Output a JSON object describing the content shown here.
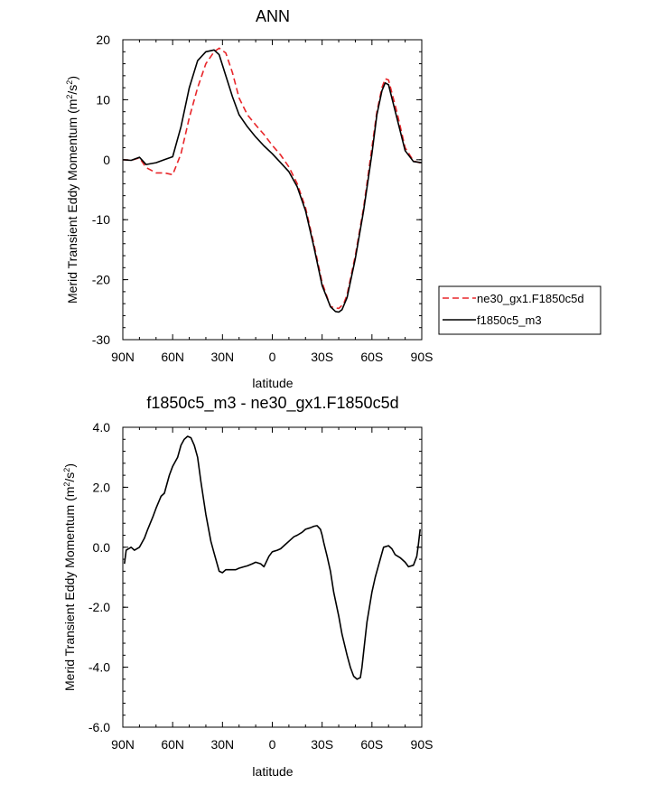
{
  "chart_data": [
    {
      "type": "line",
      "title": "ANN",
      "xlabel": "latitude",
      "ylabel": "Merid Transient Eddy Momentum (m",
      "ylabel_sup1": "2",
      "ylabel_mid": "/s",
      "ylabel_sup2": "2",
      "ylabel_end": ")",
      "xlim": [
        90,
        -90
      ],
      "ylim": [
        -30,
        20
      ],
      "x_ticks": [
        90,
        60,
        30,
        0,
        -30,
        -60,
        -90
      ],
      "x_tick_labels": [
        "90N",
        "60N",
        "30N",
        "0",
        "30S",
        "60S",
        "90S"
      ],
      "y_ticks": [
        -30,
        -20,
        -10,
        0,
        10,
        20
      ],
      "y_tick_labels": [
        "-30",
        "-20",
        "-10",
        "0",
        "10",
        "20"
      ],
      "legend": "right",
      "series": [
        {
          "name": "ne30_gx1.F1850c5d",
          "color": "#e8262a",
          "dash": "dashed",
          "x": [
            90,
            85,
            80,
            76,
            70,
            65,
            60,
            55,
            50,
            45,
            40,
            35,
            32,
            28,
            24,
            20,
            15,
            10,
            5,
            0,
            -5,
            -10,
            -15,
            -20,
            -25,
            -30,
            -35,
            -40,
            -43,
            -45,
            -50,
            -55,
            -60,
            -63,
            -66,
            -68,
            -70,
            -75,
            -80,
            -85,
            -90
          ],
          "y": [
            0,
            -0.1,
            0.3,
            -1.3,
            -2.2,
            -2.2,
            -2.5,
            1.0,
            7.0,
            12.0,
            16.0,
            18.0,
            18.6,
            17.8,
            14.5,
            10.3,
            7.5,
            5.8,
            4.2,
            2.4,
            0.8,
            -1.2,
            -4.0,
            -8.0,
            -14.0,
            -20.5,
            -24.5,
            -24.8,
            -24.0,
            -22.5,
            -16.0,
            -8.0,
            2.0,
            8.0,
            12.0,
            13.5,
            13.3,
            8.0,
            2.0,
            -0.2,
            -0.6
          ]
        },
        {
          "name": "f1850c5_m3",
          "color": "#000000",
          "dash": "solid",
          "x": [
            90,
            85,
            80,
            76,
            70,
            65,
            60,
            55,
            50,
            45,
            40,
            35,
            32,
            28,
            24,
            20,
            15,
            10,
            5,
            0,
            -5,
            -10,
            -15,
            -20,
            -25,
            -30,
            -35,
            -38,
            -40,
            -42,
            -45,
            -50,
            -55,
            -60,
            -63,
            -66,
            -68,
            -70,
            -75,
            -80,
            -85,
            -90
          ],
          "y": [
            0,
            -0.1,
            0.4,
            -0.8,
            -0.5,
            0.0,
            0.5,
            5.5,
            12.0,
            16.5,
            18.0,
            18.3,
            17.5,
            14.0,
            10.5,
            7.5,
            5.5,
            3.8,
            2.3,
            1.0,
            -0.5,
            -2.0,
            -4.5,
            -8.5,
            -14.5,
            -21.0,
            -24.5,
            -25.3,
            -25.4,
            -25.0,
            -23.0,
            -16.5,
            -8.5,
            1.0,
            7.5,
            11.5,
            12.8,
            12.5,
            7.0,
            1.5,
            -0.3,
            -0.5
          ]
        }
      ]
    },
    {
      "type": "line",
      "title": "f1850c5_m3 - ne30_gx1.F1850c5d",
      "xlabel": "latitude",
      "ylabel": "Merid Transient Eddy Momentum (m",
      "ylabel_sup1": "2",
      "ylabel_mid": "/s",
      "ylabel_sup2": "2",
      "ylabel_end": ")",
      "xlim": [
        90,
        -90
      ],
      "ylim": [
        -6,
        4
      ],
      "x_ticks": [
        90,
        60,
        30,
        0,
        -30,
        -60,
        -90
      ],
      "x_tick_labels": [
        "90N",
        "60N",
        "30N",
        "0",
        "30S",
        "60S",
        "90S"
      ],
      "y_ticks": [
        -6,
        -4,
        -2,
        0,
        2,
        4
      ],
      "y_tick_labels": [
        "-6.0",
        "-4.0",
        "-2.0",
        "0.0",
        "2.0",
        "4.0"
      ],
      "series": [
        {
          "color": "#000000",
          "dash": "solid",
          "x": [
            89,
            88,
            85,
            83,
            80,
            77,
            75,
            72,
            70,
            67,
            65,
            62,
            60,
            57,
            55,
            53,
            51,
            49,
            47,
            45,
            43,
            40,
            37,
            35,
            32,
            30,
            28,
            25,
            22,
            20,
            17,
            15,
            12,
            10,
            7,
            5,
            2,
            0,
            -3,
            -5,
            -8,
            -10,
            -13,
            -15,
            -18,
            -20,
            -23,
            -25,
            -27,
            -29,
            -30,
            -31,
            -33,
            -35,
            -37,
            -40,
            -42,
            -45,
            -47,
            -49,
            -51,
            -53,
            -54,
            -55,
            -57,
            -60,
            -62,
            -65,
            -67,
            -70,
            -72,
            -74,
            -77,
            -80,
            -82,
            -85,
            -87,
            -88,
            -89
          ],
          "y": [
            -0.55,
            -0.1,
            0.0,
            -0.1,
            0.0,
            0.3,
            0.6,
            1.0,
            1.3,
            1.7,
            1.8,
            2.4,
            2.7,
            3.0,
            3.4,
            3.6,
            3.7,
            3.65,
            3.4,
            3.0,
            2.2,
            1.1,
            0.2,
            -0.2,
            -0.8,
            -0.85,
            -0.75,
            -0.75,
            -0.75,
            -0.7,
            -0.65,
            -0.62,
            -0.55,
            -0.5,
            -0.55,
            -0.65,
            -0.3,
            -0.15,
            -0.1,
            -0.05,
            0.1,
            0.2,
            0.35,
            0.4,
            0.5,
            0.6,
            0.65,
            0.7,
            0.72,
            0.6,
            0.4,
            0.15,
            -0.3,
            -0.8,
            -1.5,
            -2.3,
            -2.9,
            -3.6,
            -4.0,
            -4.3,
            -4.4,
            -4.35,
            -4.0,
            -3.5,
            -2.5,
            -1.5,
            -1.0,
            -0.4,
            0.0,
            0.05,
            -0.05,
            -0.25,
            -0.35,
            -0.5,
            -0.65,
            -0.6,
            -0.3,
            0.1,
            0.6
          ]
        }
      ]
    }
  ]
}
